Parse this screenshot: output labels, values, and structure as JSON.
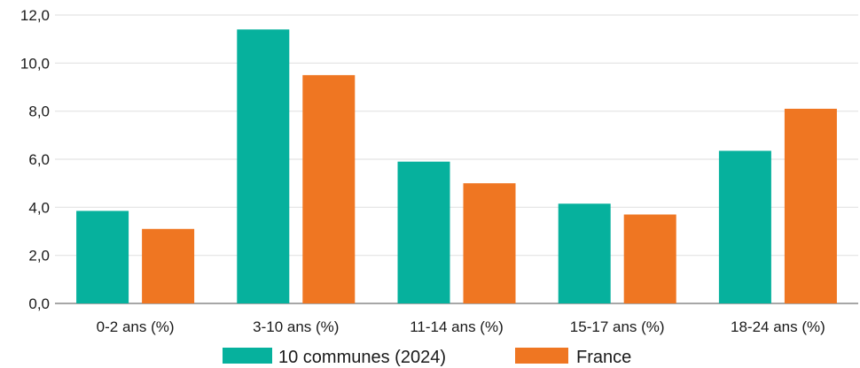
{
  "chart_data": {
    "type": "bar",
    "categories": [
      "0-2 ans (%)",
      "3-10 ans (%)",
      "11-14 ans (%)",
      "15-17 ans (%)",
      "18-24 ans (%)"
    ],
    "series": [
      {
        "name": "10 communes (2024)",
        "color": "#06b19d",
        "values": [
          3.85,
          11.4,
          5.9,
          4.15,
          6.35
        ]
      },
      {
        "name": "France",
        "color": "#ef7622",
        "values": [
          3.1,
          9.5,
          5.0,
          3.7,
          8.1
        ]
      }
    ],
    "y_ticks": [
      "0,0",
      "2,0",
      "4,0",
      "6,0",
      "8,0",
      "10,0",
      "12,0"
    ],
    "ylim": [
      0,
      12
    ],
    "grid": true,
    "legend": "bottom-center"
  }
}
